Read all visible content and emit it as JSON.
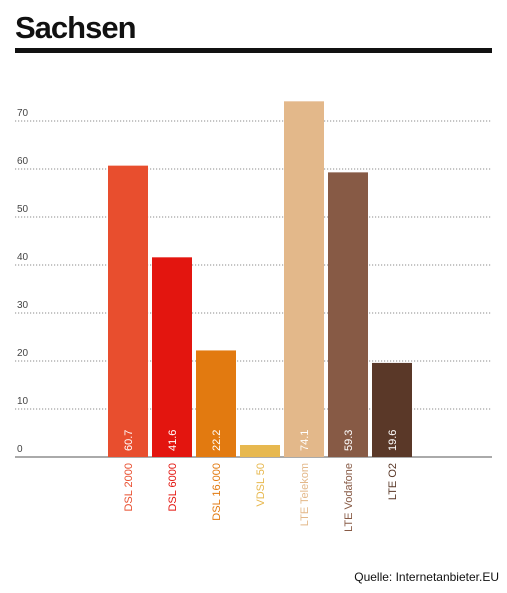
{
  "title": "Sachsen",
  "source": "Quelle: Internetanbieter.EU",
  "chart_data": {
    "type": "bar",
    "title": "Sachsen",
    "xlabel": "",
    "ylabel": "",
    "ylim": [
      0,
      70
    ],
    "yticks": [
      0,
      10,
      20,
      30,
      40,
      50,
      60,
      70
    ],
    "grid": true,
    "legend": "none",
    "categories": [
      "DSL 2000",
      "DSL 6000",
      "DSL 16.000",
      "VDSL 50",
      "LTE Telekom",
      "LTE Vodafone",
      "LTE O2"
    ],
    "values": [
      60.7,
      41.6,
      22.2,
      2.5,
      74.1,
      59.3,
      19.6
    ],
    "value_labels": [
      "60.7",
      "41.6",
      "22.2",
      "",
      "74.1",
      "59.3",
      "19.6"
    ],
    "colors": [
      "#e84e2e",
      "#e3150f",
      "#e27a10",
      "#e7b84f",
      "#e3b88a",
      "#875a45",
      "#5a3828"
    ]
  }
}
